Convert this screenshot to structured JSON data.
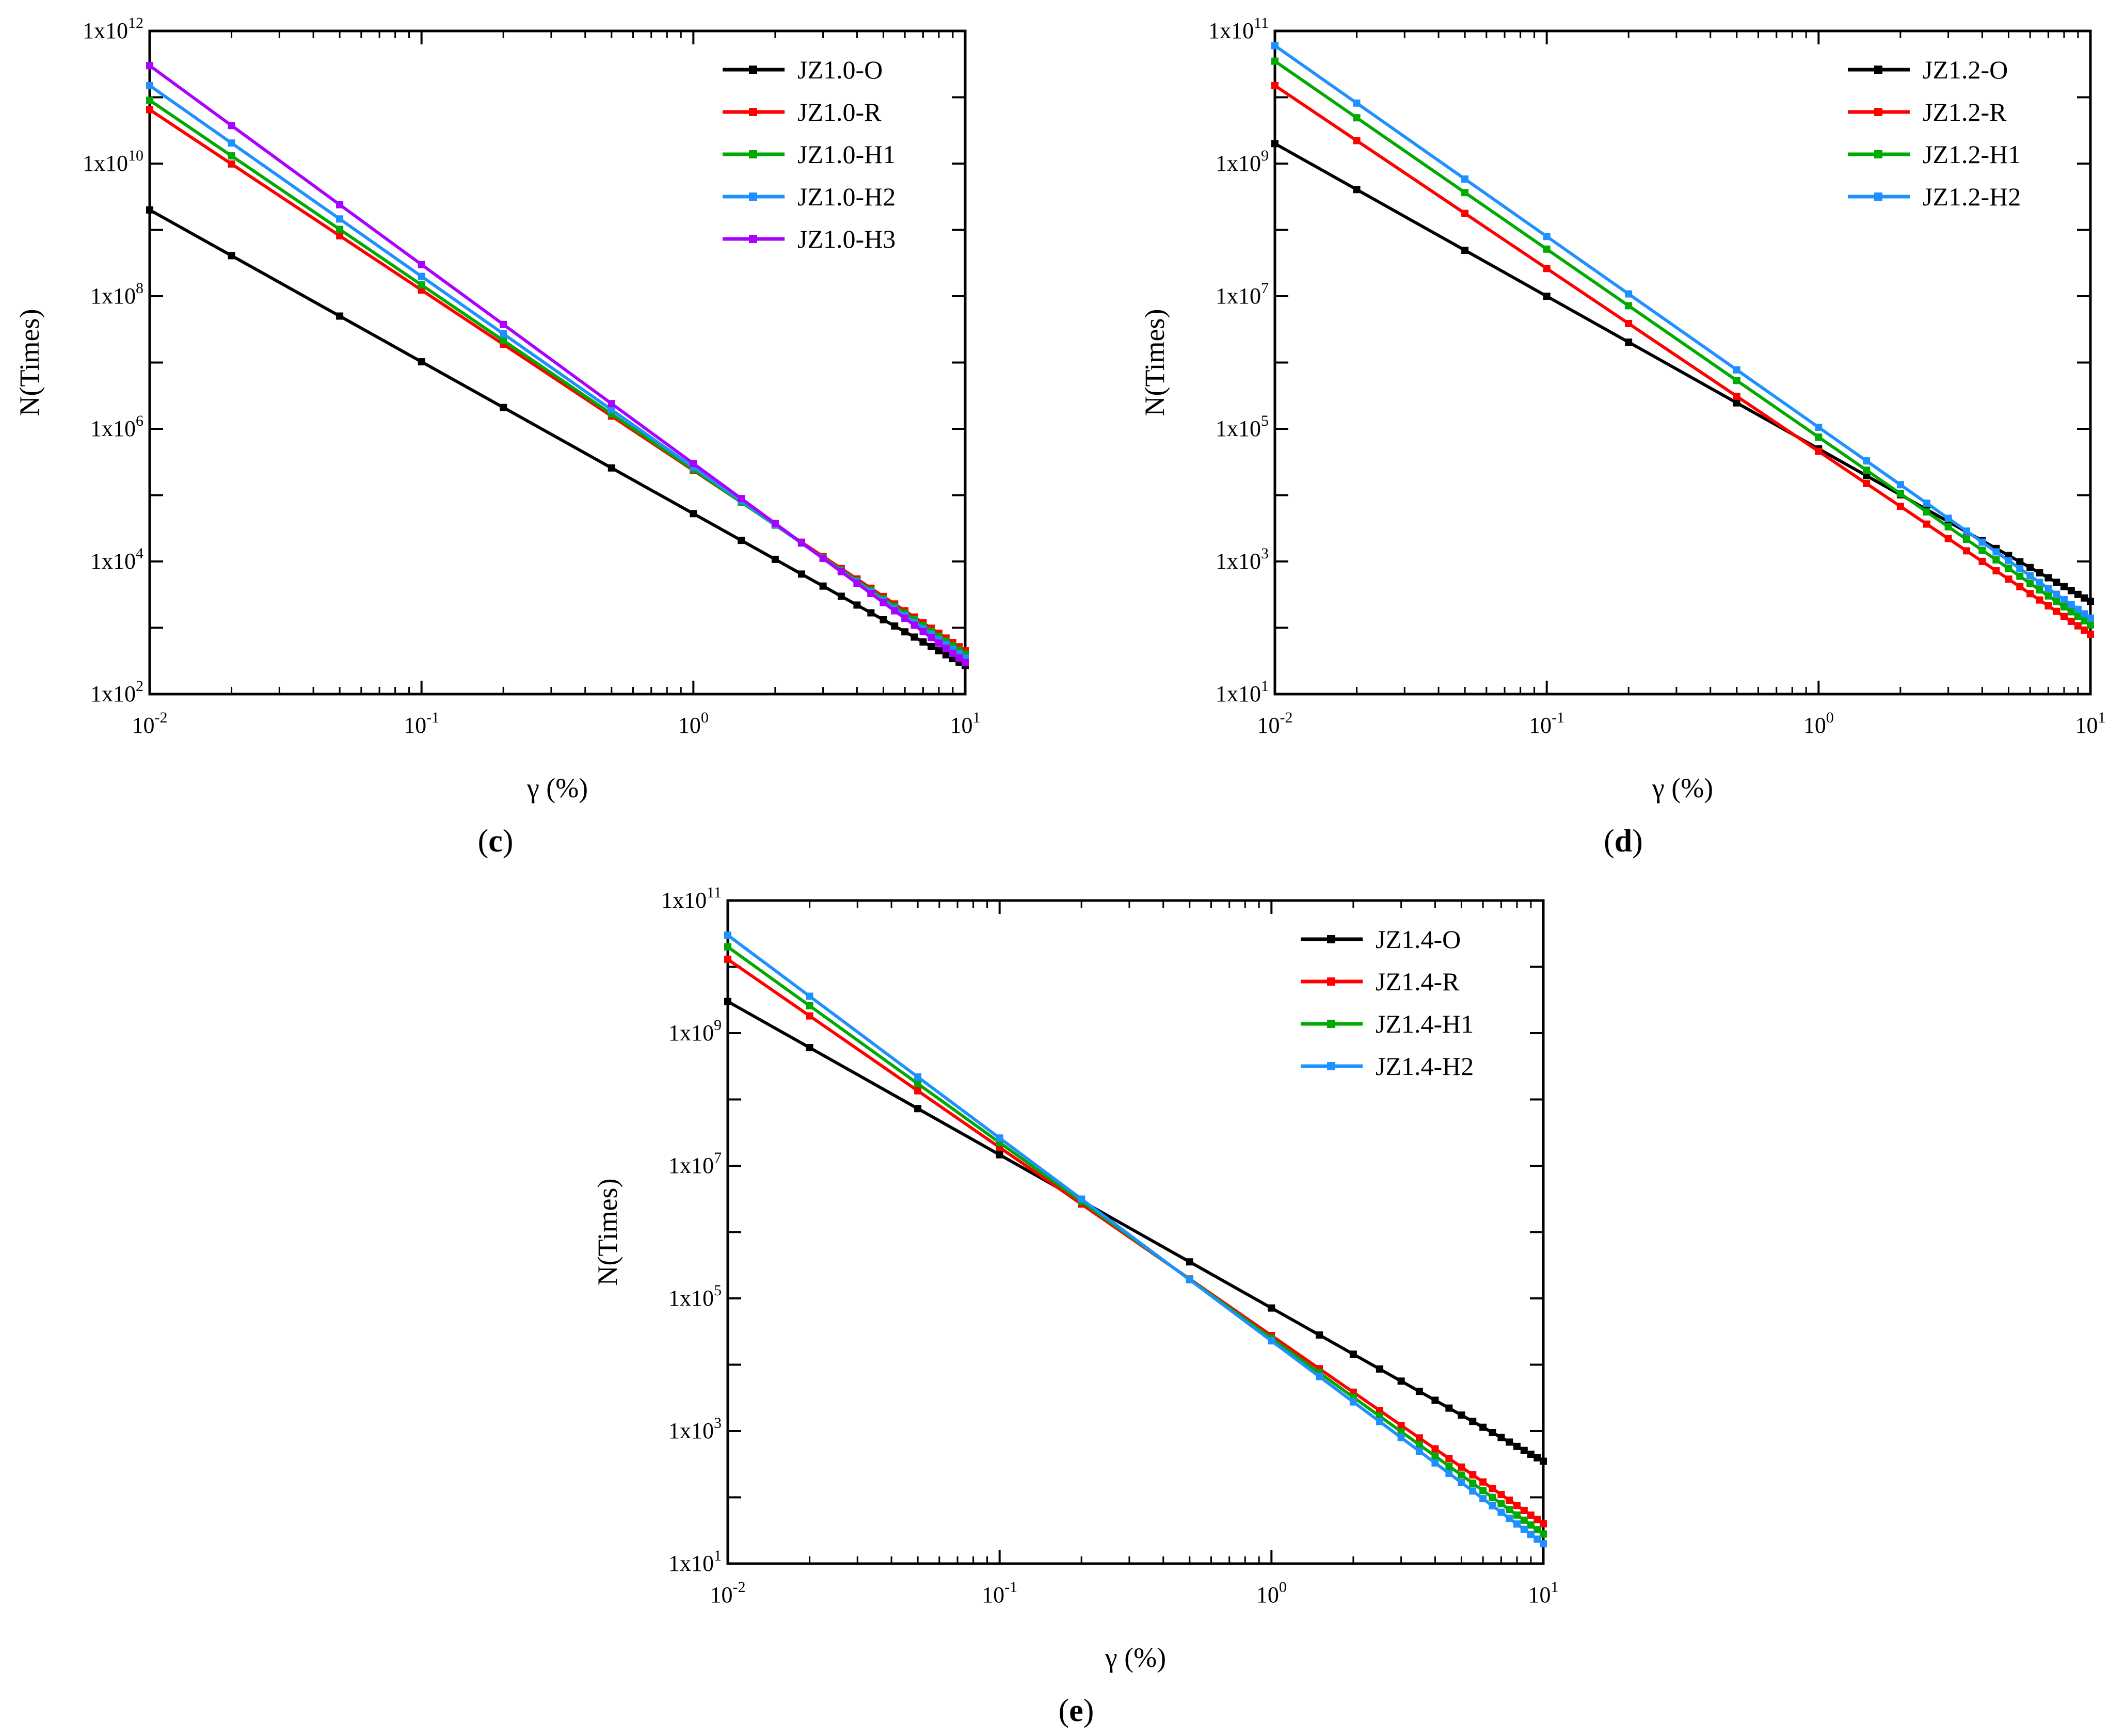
{
  "chart_data": [
    {
      "type": "line",
      "panel_label": "c",
      "xscale": "log",
      "yscale": "log",
      "xlabel": "γ (%)",
      "ylabel": "N(Times)",
      "xlim": [
        0.01,
        10
      ],
      "ylim": [
        100,
        1000000000000
      ],
      "x_ticks": [
        {
          "base": "10",
          "exp": "-2"
        },
        {
          "base": "10",
          "exp": "-1"
        },
        {
          "base": "10",
          "exp": "0"
        },
        {
          "base": "10",
          "exp": "1"
        }
      ],
      "y_ticks": [
        {
          "base": "1x10",
          "exp": "2"
        },
        {
          "base": "1x10",
          "exp": "4"
        },
        {
          "base": "1x10",
          "exp": "6"
        },
        {
          "base": "1x10",
          "exp": "8"
        },
        {
          "base": "1x10",
          "exp": "10"
        },
        {
          "base": "1x10",
          "exp": "12"
        }
      ],
      "legend_position": "top-right",
      "series": [
        {
          "name": "JZ1.0-O",
          "color": "#000000",
          "n_at_0_01": 2000000000,
          "n_at_10": 270
        },
        {
          "name": "JZ1.0-R",
          "color": "#ff0000",
          "n_at_0_01": 65000000000,
          "n_at_10": 450
        },
        {
          "name": "JZ1.0-H1",
          "color": "#00aa00",
          "n_at_0_01": 90000000000,
          "n_at_10": 400
        },
        {
          "name": "JZ1.0-H2",
          "color": "#1e90ff",
          "n_at_0_01": 150000000000,
          "n_at_10": 350
        },
        {
          "name": "JZ1.0-H3",
          "color": "#aa00ff",
          "n_at_0_01": 300000000000,
          "n_at_10": 300
        }
      ]
    },
    {
      "type": "line",
      "panel_label": "d",
      "xscale": "log",
      "yscale": "log",
      "xlabel": "γ (%)",
      "ylabel": "N(Times)",
      "xlim": [
        0.01,
        10
      ],
      "ylim": [
        10,
        100000000000
      ],
      "x_ticks": [
        {
          "base": "10",
          "exp": "-2"
        },
        {
          "base": "10",
          "exp": "-1"
        },
        {
          "base": "10",
          "exp": "0"
        },
        {
          "base": "10",
          "exp": "1"
        }
      ],
      "y_ticks": [
        {
          "base": "1x10",
          "exp": "1"
        },
        {
          "base": "1x10",
          "exp": "3"
        },
        {
          "base": "1x10",
          "exp": "5"
        },
        {
          "base": "1x10",
          "exp": "7"
        },
        {
          "base": "1x10",
          "exp": "9"
        },
        {
          "base": "1x10",
          "exp": "11"
        }
      ],
      "legend_position": "top-right",
      "series": [
        {
          "name": "JZ1.2-O",
          "color": "#000000",
          "n_at_0_01": 2000000000,
          "n_at_10": 250
        },
        {
          "name": "JZ1.2-R",
          "color": "#ff0000",
          "n_at_0_01": 15000000000,
          "n_at_10": 80
        },
        {
          "name": "JZ1.2-H1",
          "color": "#00aa00",
          "n_at_0_01": 35000000000,
          "n_at_10": 110
        },
        {
          "name": "JZ1.2-H2",
          "color": "#1e90ff",
          "n_at_0_01": 60000000000,
          "n_at_10": 140
        }
      ]
    },
    {
      "type": "line",
      "panel_label": "e",
      "xscale": "log",
      "yscale": "log",
      "xlabel": "γ (%)",
      "ylabel": "N(Times)",
      "xlim": [
        0.01,
        10
      ],
      "ylim": [
        10,
        100000000000
      ],
      "x_ticks": [
        {
          "base": "10",
          "exp": "-2"
        },
        {
          "base": "10",
          "exp": "-1"
        },
        {
          "base": "10",
          "exp": "0"
        },
        {
          "base": "10",
          "exp": "1"
        }
      ],
      "y_ticks": [
        {
          "base": "1x10",
          "exp": "1"
        },
        {
          "base": "1x10",
          "exp": "3"
        },
        {
          "base": "1x10",
          "exp": "5"
        },
        {
          "base": "1x10",
          "exp": "7"
        },
        {
          "base": "1x10",
          "exp": "9"
        },
        {
          "base": "1x10",
          "exp": "11"
        }
      ],
      "legend_position": "top-right",
      "series": [
        {
          "name": "JZ1.4-O",
          "color": "#000000",
          "n_at_0_01": 3000000000,
          "n_at_10": 350
        },
        {
          "name": "JZ1.4-R",
          "color": "#ff0000",
          "n_at_0_01": 13000000000,
          "n_at_10": 40
        },
        {
          "name": "JZ1.4-H1",
          "color": "#00aa00",
          "n_at_0_01": 20000000000,
          "n_at_10": 28
        },
        {
          "name": "JZ1.4-H2",
          "color": "#1e90ff",
          "n_at_0_01": 30000000000,
          "n_at_10": 20
        }
      ]
    }
  ]
}
